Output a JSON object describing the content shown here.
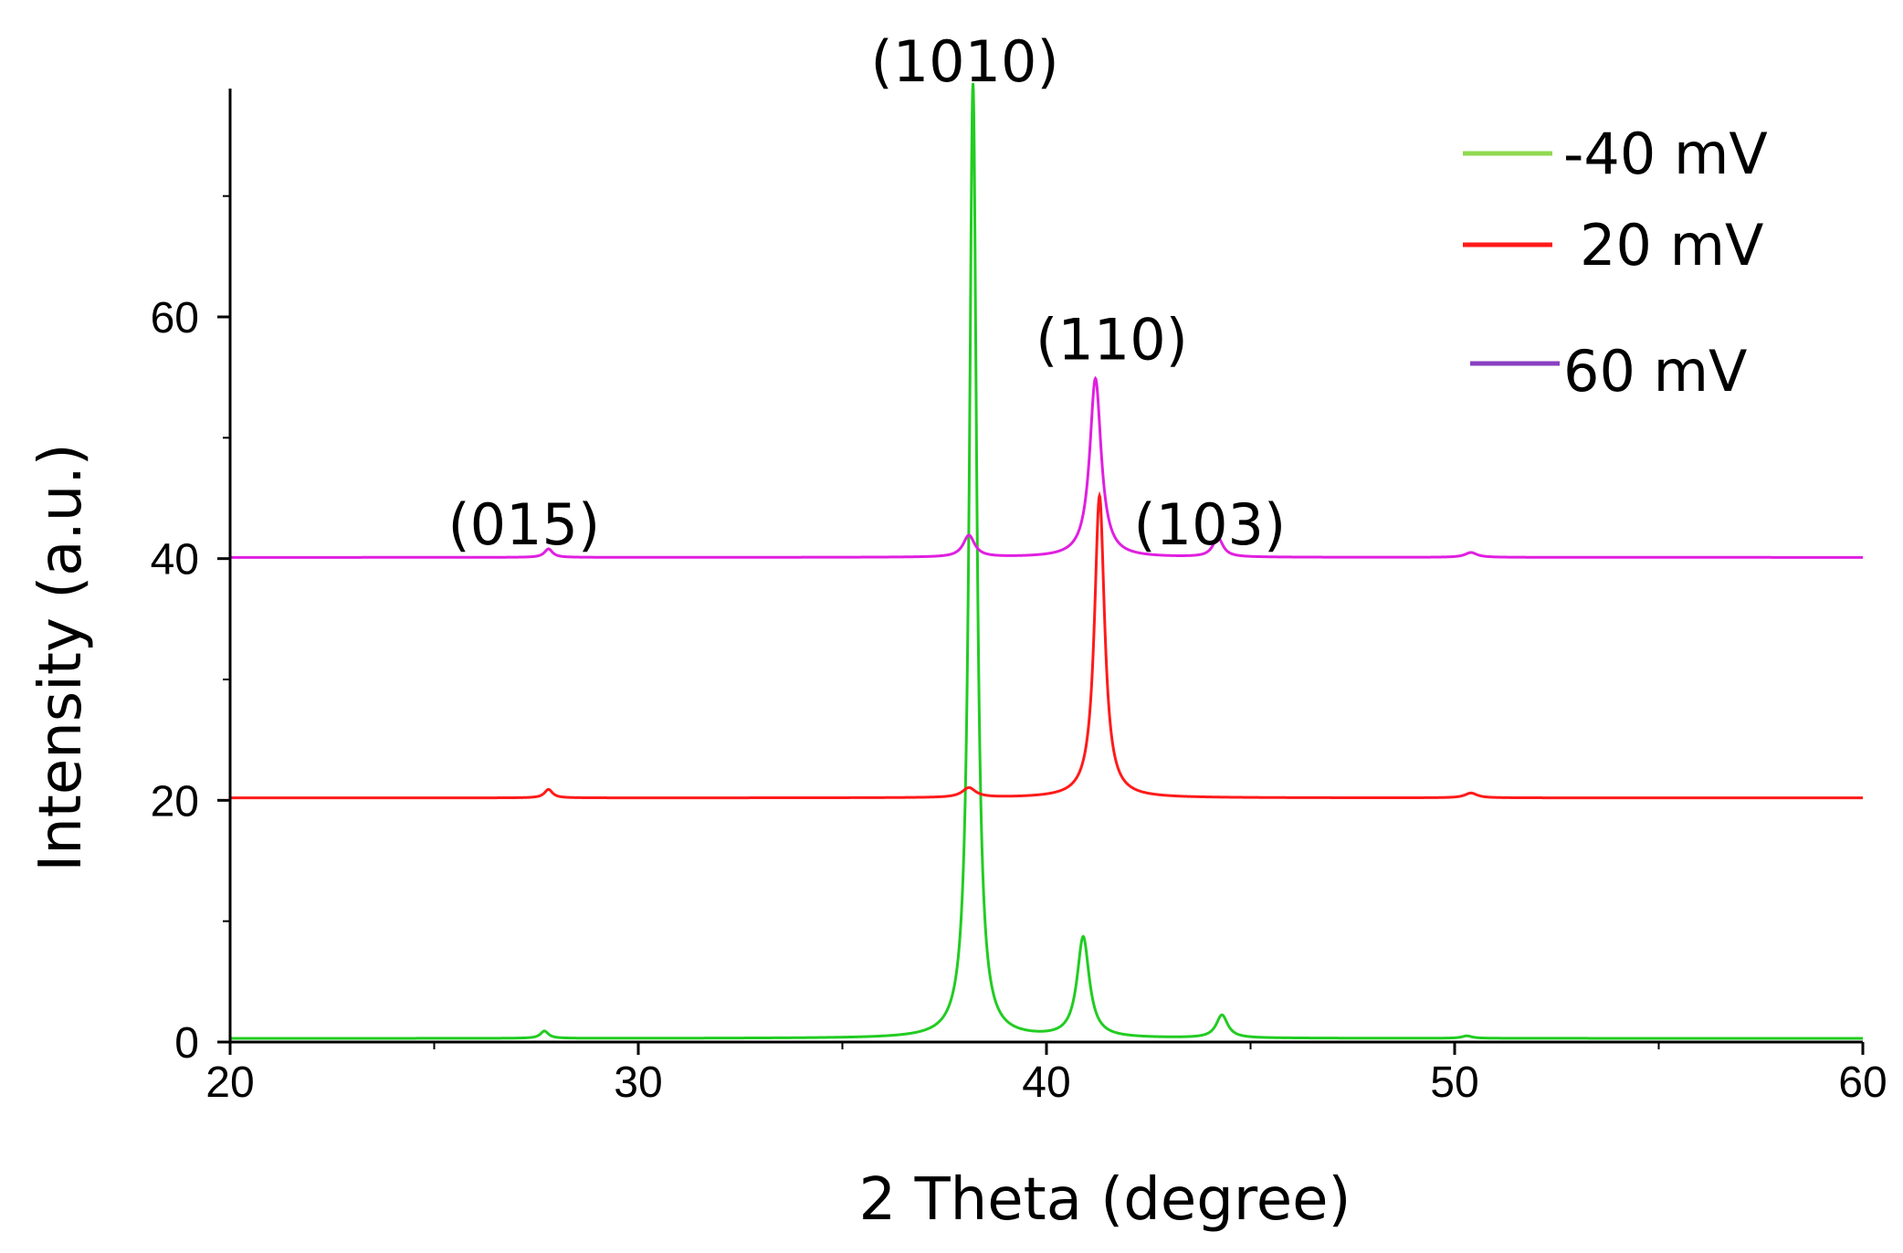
{
  "chart_data": {
    "type": "line",
    "title": "",
    "xlabel": "2 Theta (degree)",
    "ylabel": "Intensity (a.u.)",
    "xlim": [
      20,
      60
    ],
    "ylim": [
      0,
      79
    ],
    "xticks": [
      20,
      30,
      40,
      50,
      60
    ],
    "yticks": [
      0,
      20,
      40,
      60
    ],
    "grid": false,
    "legend_position": "top-right",
    "series": [
      {
        "name": "-40 mV",
        "color": "#22cc22",
        "legend_color": "#8fd94f",
        "baseline": 0.3,
        "peaks": [
          {
            "x": 27.7,
            "height": 0.6,
            "width": 0.12
          },
          {
            "x": 38.2,
            "height": 79,
            "width": 0.11
          },
          {
            "x": 40.9,
            "height": 8.3,
            "width": 0.18
          },
          {
            "x": 44.3,
            "height": 1.9,
            "width": 0.17
          },
          {
            "x": 50.3,
            "height": 0.2,
            "width": 0.15
          }
        ]
      },
      {
        "name": "20 mV",
        "color": "#ff1a1a",
        "legend_color": "#ff1a1a",
        "baseline": 20.2,
        "peaks": [
          {
            "x": 27.8,
            "height": 0.7,
            "width": 0.12
          },
          {
            "x": 38.1,
            "height": 0.8,
            "width": 0.2
          },
          {
            "x": 41.3,
            "height": 25,
            "width": 0.15
          },
          {
            "x": 50.4,
            "height": 0.4,
            "width": 0.18
          }
        ]
      },
      {
        "name": "60 mV",
        "color": "#e01fe0",
        "legend_color": "#8a3fc0",
        "baseline": 40.1,
        "peaks": [
          {
            "x": 27.8,
            "height": 0.7,
            "width": 0.12
          },
          {
            "x": 38.1,
            "height": 1.8,
            "width": 0.17
          },
          {
            "x": 41.2,
            "height": 14.8,
            "width": 0.17
          },
          {
            "x": 44.2,
            "height": 1.6,
            "width": 0.15
          },
          {
            "x": 50.4,
            "height": 0.4,
            "width": 0.18
          }
        ]
      }
    ],
    "annotations": [
      {
        "text": "(015)",
        "x": 27.2,
        "y": 41.2
      },
      {
        "text": "(1010)",
        "x": 38.0,
        "y": 79.5
      },
      {
        "text": "(110)",
        "x": 41.6,
        "y": 56.5
      },
      {
        "text": "(103)",
        "x": 44.0,
        "y": 41.2
      }
    ]
  }
}
